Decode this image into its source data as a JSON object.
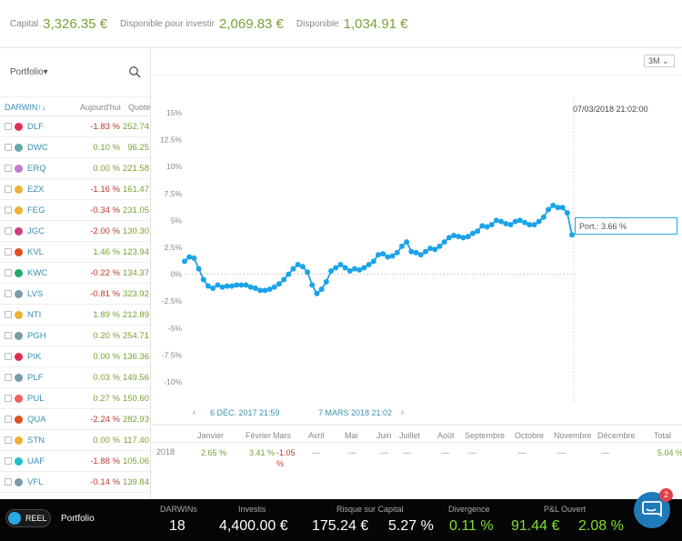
{
  "topbar": {
    "capital_label": "Capital",
    "capital_value": "3,326.35 €",
    "avail_invest_label": "Disponible pour investir",
    "avail_invest_value": "2,069.83 €",
    "avail_label": "Disponible",
    "avail_value": "1,034.91 €"
  },
  "sidebar": {
    "portfolio_label": "Portfolio▾",
    "headers": {
      "darwin": "DARWIN↑↓",
      "today": "Aujourd'hui",
      "quote": "Quote"
    },
    "rows": [
      {
        "name": "DLF",
        "pct": "-1.83 %",
        "quote": "252.74",
        "color": "#e0305a",
        "neg": true
      },
      {
        "name": "DWC",
        "pct": "0.10 %",
        "quote": "96.25",
        "color": "#6aa8a8",
        "neg": false
      },
      {
        "name": "ERQ",
        "pct": "0.00 %",
        "quote": "221.58",
        "color": "#c07ad0",
        "neg": false
      },
      {
        "name": "EZX",
        "pct": "-1.16 %",
        "quote": "161.47",
        "color": "#f0b030",
        "neg": true
      },
      {
        "name": "FEG",
        "pct": "-0.34 %",
        "quote": "231.05",
        "color": "#f0b030",
        "neg": true
      },
      {
        "name": "JGC",
        "pct": "-2.00 %",
        "quote": "130.30",
        "color": "#d0407a",
        "neg": true
      },
      {
        "name": "KVL",
        "pct": "1.46 %",
        "quote": "123.94",
        "color": "#e05020",
        "neg": false
      },
      {
        "name": "KWC",
        "pct": "-0.22 %",
        "quote": "134.37",
        "color": "#20a870",
        "neg": true
      },
      {
        "name": "LVS",
        "pct": "-0.81 %",
        "quote": "323.92",
        "color": "#7a9aa8",
        "neg": true
      },
      {
        "name": "NTI",
        "pct": "1.89 %",
        "quote": "212.89",
        "color": "#f0b030",
        "neg": false
      },
      {
        "name": "PGH",
        "pct": "0.20 %",
        "quote": "254.71",
        "color": "#7a9aa8",
        "neg": false
      },
      {
        "name": "PIK",
        "pct": "0.00 %",
        "quote": "136.36",
        "color": "#e03050",
        "neg": false
      },
      {
        "name": "PLF",
        "pct": "0.03 %",
        "quote": "149.56",
        "color": "#7a9aa8",
        "neg": false
      },
      {
        "name": "PUL",
        "pct": "0.27 %",
        "quote": "150.60",
        "color": "#f06060",
        "neg": false
      },
      {
        "name": "QUA",
        "pct": "-2.24 %",
        "quote": "282.93",
        "color": "#e05020",
        "neg": true
      },
      {
        "name": "STN",
        "pct": "0.00 %",
        "quote": "117.40",
        "color": "#f0b030",
        "neg": false
      },
      {
        "name": "UAF",
        "pct": "-1.88 %",
        "quote": "105.06",
        "color": "#20c0c8",
        "neg": true
      },
      {
        "name": "VFL",
        "pct": "-0.14 %",
        "quote": "139.84",
        "color": "#7a9aa8",
        "neg": true
      }
    ]
  },
  "chart": {
    "range_button": "3M",
    "tooltip_date": "07/03/2018 21:02:00",
    "port_label": "Port.: 3.66 %",
    "nav_start": "6 DÉC. 2017 21:59",
    "nav_end": "7 MARS 2018 21:02"
  },
  "chart_data": {
    "type": "line",
    "y_ticks": [
      "15%",
      "12.5%",
      "10%",
      "7.5%",
      "5%",
      "2.5%",
      "0%",
      "-2.5%",
      "-5%",
      "-7.5%",
      "-10%"
    ],
    "ylim": [
      -10,
      15
    ],
    "series": [
      {
        "color": "#1aa3e8",
        "values": [
          1.2,
          1.6,
          1.5,
          0.5,
          -0.5,
          -1.1,
          -1.3,
          -1.0,
          -1.2,
          -1.1,
          -1.1,
          -1.0,
          -1.0,
          -1.0,
          -1.2,
          -1.3,
          -1.5,
          -1.5,
          -1.4,
          -1.2,
          -0.9,
          -0.5,
          0.0,
          0.5,
          0.9,
          0.7,
          0.2,
          -1.0,
          -1.8,
          -1.4,
          -0.7,
          0.3,
          0.6,
          0.9,
          0.6,
          0.3,
          0.5,
          0.4,
          0.6,
          0.9,
          1.2,
          1.8,
          1.9,
          1.6,
          1.7,
          2.0,
          2.6,
          3.0,
          2.1,
          2.0,
          1.8,
          2.1,
          2.4,
          2.3,
          2.6,
          3.0,
          3.4,
          3.6,
          3.5,
          3.4,
          3.5,
          3.8,
          4.0,
          4.5,
          4.4,
          4.6,
          5.0,
          4.9,
          4.7,
          4.6,
          4.9,
          5.0,
          4.8,
          4.6,
          4.6,
          4.9,
          5.3,
          6.0,
          6.4,
          6.2,
          6.2,
          5.7,
          3.66
        ]
      }
    ]
  },
  "month_table": {
    "months": [
      "Janvier",
      "Février",
      "Mars",
      "Avril",
      "Mai",
      "Juin",
      "Juillet",
      "Août",
      "Septembre",
      "Octobre",
      "Novembre",
      "Décembre",
      "Total"
    ],
    "year": "2018",
    "values": [
      "2.65 %",
      "3.41 %",
      "-1.05 %",
      "---",
      "---",
      "---",
      "---",
      "---",
      "---",
      "---",
      "---",
      "---",
      "5.04 %"
    ]
  },
  "bottombar": {
    "toggle_label": "REEL",
    "portfolio": "Portfolio",
    "darwins_label": "DARWINs",
    "darwins_value": "18",
    "investis_label": "Investis",
    "investis_value": "4,400.00 €",
    "risque_label": "Risque sur Capital",
    "risque_value": "175.24 €",
    "risque_pct": "5.27 %",
    "divergence_label": "Divergence",
    "divergence_value": "0.11 %",
    "pl_label": "P&L Ouvert",
    "pl_value": "91.44 €",
    "pl_pct": "2.08 %"
  },
  "chat": {
    "badge": "2"
  }
}
